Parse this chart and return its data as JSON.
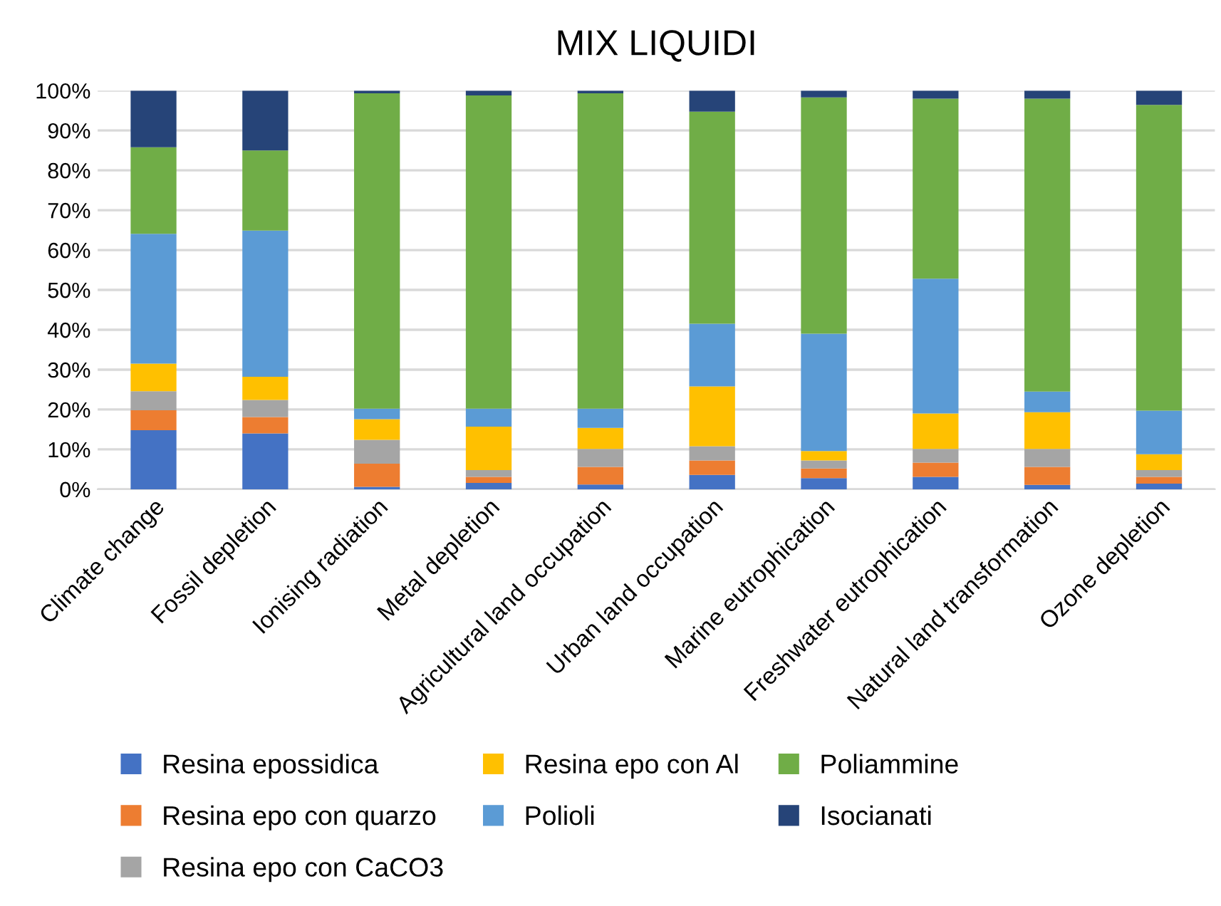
{
  "chart_data": {
    "type": "bar",
    "title": "MIX LIQUIDI",
    "stacked": true,
    "categories": [
      "Climate change",
      "Fossil depletion",
      "Ionising radiation",
      "Metal depletion",
      "Agricultural land occupation",
      "Urban land occupation",
      "Marine eutrophication",
      "Freshwater eutrophication",
      "Natural land transformation",
      "Ozone depletion"
    ],
    "series": [
      {
        "name": "Resina epossidica",
        "color": "#4472c4",
        "values": [
          14.8,
          14.0,
          0.6,
          1.6,
          1.2,
          3.6,
          2.8,
          3.1,
          1.1,
          1.4
        ]
      },
      {
        "name": "Resina epo con quarzo",
        "color": "#ed7d31",
        "values": [
          5.0,
          4.1,
          5.8,
          1.5,
          4.4,
          3.6,
          2.4,
          3.6,
          4.5,
          1.7
        ]
      },
      {
        "name": "Resina epo con CaCO3",
        "color": "#a5a5a5",
        "values": [
          4.8,
          4.3,
          6.0,
          1.7,
          4.5,
          3.6,
          2.0,
          3.4,
          4.5,
          1.7
        ]
      },
      {
        "name": "Resina epo con Al",
        "color": "#ffc000",
        "values": [
          6.9,
          5.8,
          5.2,
          10.9,
          5.3,
          15.0,
          2.4,
          8.9,
          9.2,
          4.0
        ]
      },
      {
        "name": "Polioli",
        "color": "#5b9bd5",
        "values": [
          32.6,
          36.7,
          2.6,
          4.5,
          4.8,
          15.7,
          29.4,
          33.8,
          5.2,
          10.9
        ]
      },
      {
        "name": "Poliammine",
        "color": "#70ad47",
        "values": [
          21.7,
          20.1,
          79.1,
          78.6,
          79.1,
          53.2,
          59.3,
          45.2,
          73.5,
          76.7
        ]
      },
      {
        "name": "Isocianati",
        "color": "#264478",
        "values": [
          14.2,
          15.0,
          0.7,
          1.2,
          0.7,
          5.3,
          1.7,
          2.0,
          2.0,
          3.6
        ]
      }
    ],
    "ylim": [
      0,
      100
    ],
    "yticks": [
      {
        "value": 0,
        "label": "0%"
      },
      {
        "value": 10,
        "label": "10%"
      },
      {
        "value": 20,
        "label": "20%"
      },
      {
        "value": 30,
        "label": "30%"
      },
      {
        "value": 40,
        "label": "40%"
      },
      {
        "value": 50,
        "label": "50%"
      },
      {
        "value": 60,
        "label": "60%"
      },
      {
        "value": 70,
        "label": "70%"
      },
      {
        "value": 80,
        "label": "80%"
      },
      {
        "value": 90,
        "label": "90%"
      },
      {
        "value": 100,
        "label": "100%"
      }
    ],
    "grid": "y",
    "legend": "bottom"
  }
}
